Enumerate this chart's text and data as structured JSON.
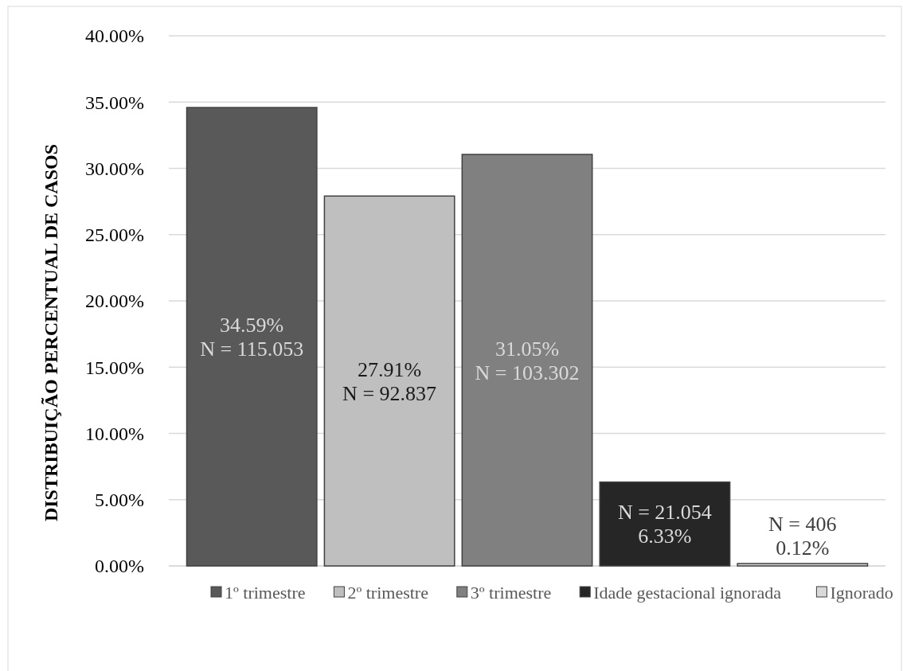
{
  "chart_data": {
    "type": "bar",
    "ylabel": "DISTRIBUIÇÃO PERCENTUAL DE CASOS",
    "categories": [
      null
    ],
    "series": [
      {
        "name": "1º trimestre",
        "color": "#595959",
        "values": [
          34.59
        ],
        "value_labels": [
          "34.59%\nN = 115.053"
        ]
      },
      {
        "name": "2º trimestre",
        "color": "#bfbfbf",
        "values": [
          27.91
        ],
        "value_labels": [
          "27.91%\nN = 92.837"
        ]
      },
      {
        "name": "3º trimestre",
        "color": "#808080",
        "values": [
          31.05
        ],
        "value_labels": [
          "31.05%\nN = 103.302"
        ]
      },
      {
        "name": "Idade gestacional ignorada",
        "color": "#262626",
        "values": [
          6.33
        ],
        "value_labels": [
          "N = 21.054\n6.33%"
        ]
      },
      {
        "name": "Ignorado",
        "color": "#d9d9d9",
        "values": [
          0.12
        ],
        "value_labels": [
          "N = 406\n0.12%"
        ]
      }
    ],
    "ylim": [
      0,
      40
    ],
    "yticks": [
      {
        "value": 0,
        "label": "0.00%"
      },
      {
        "value": 5,
        "label": "5.00%"
      },
      {
        "value": 10,
        "label": "10.00%"
      },
      {
        "value": 15,
        "label": "15.00%"
      },
      {
        "value": 20,
        "label": "20.00%"
      },
      {
        "value": 25,
        "label": "25.00%"
      },
      {
        "value": 30,
        "label": "30.00%"
      },
      {
        "value": 35,
        "label": "35.00%"
      },
      {
        "value": 40,
        "label": "40.00%"
      }
    ],
    "grid": "y",
    "legend": "bottom"
  }
}
